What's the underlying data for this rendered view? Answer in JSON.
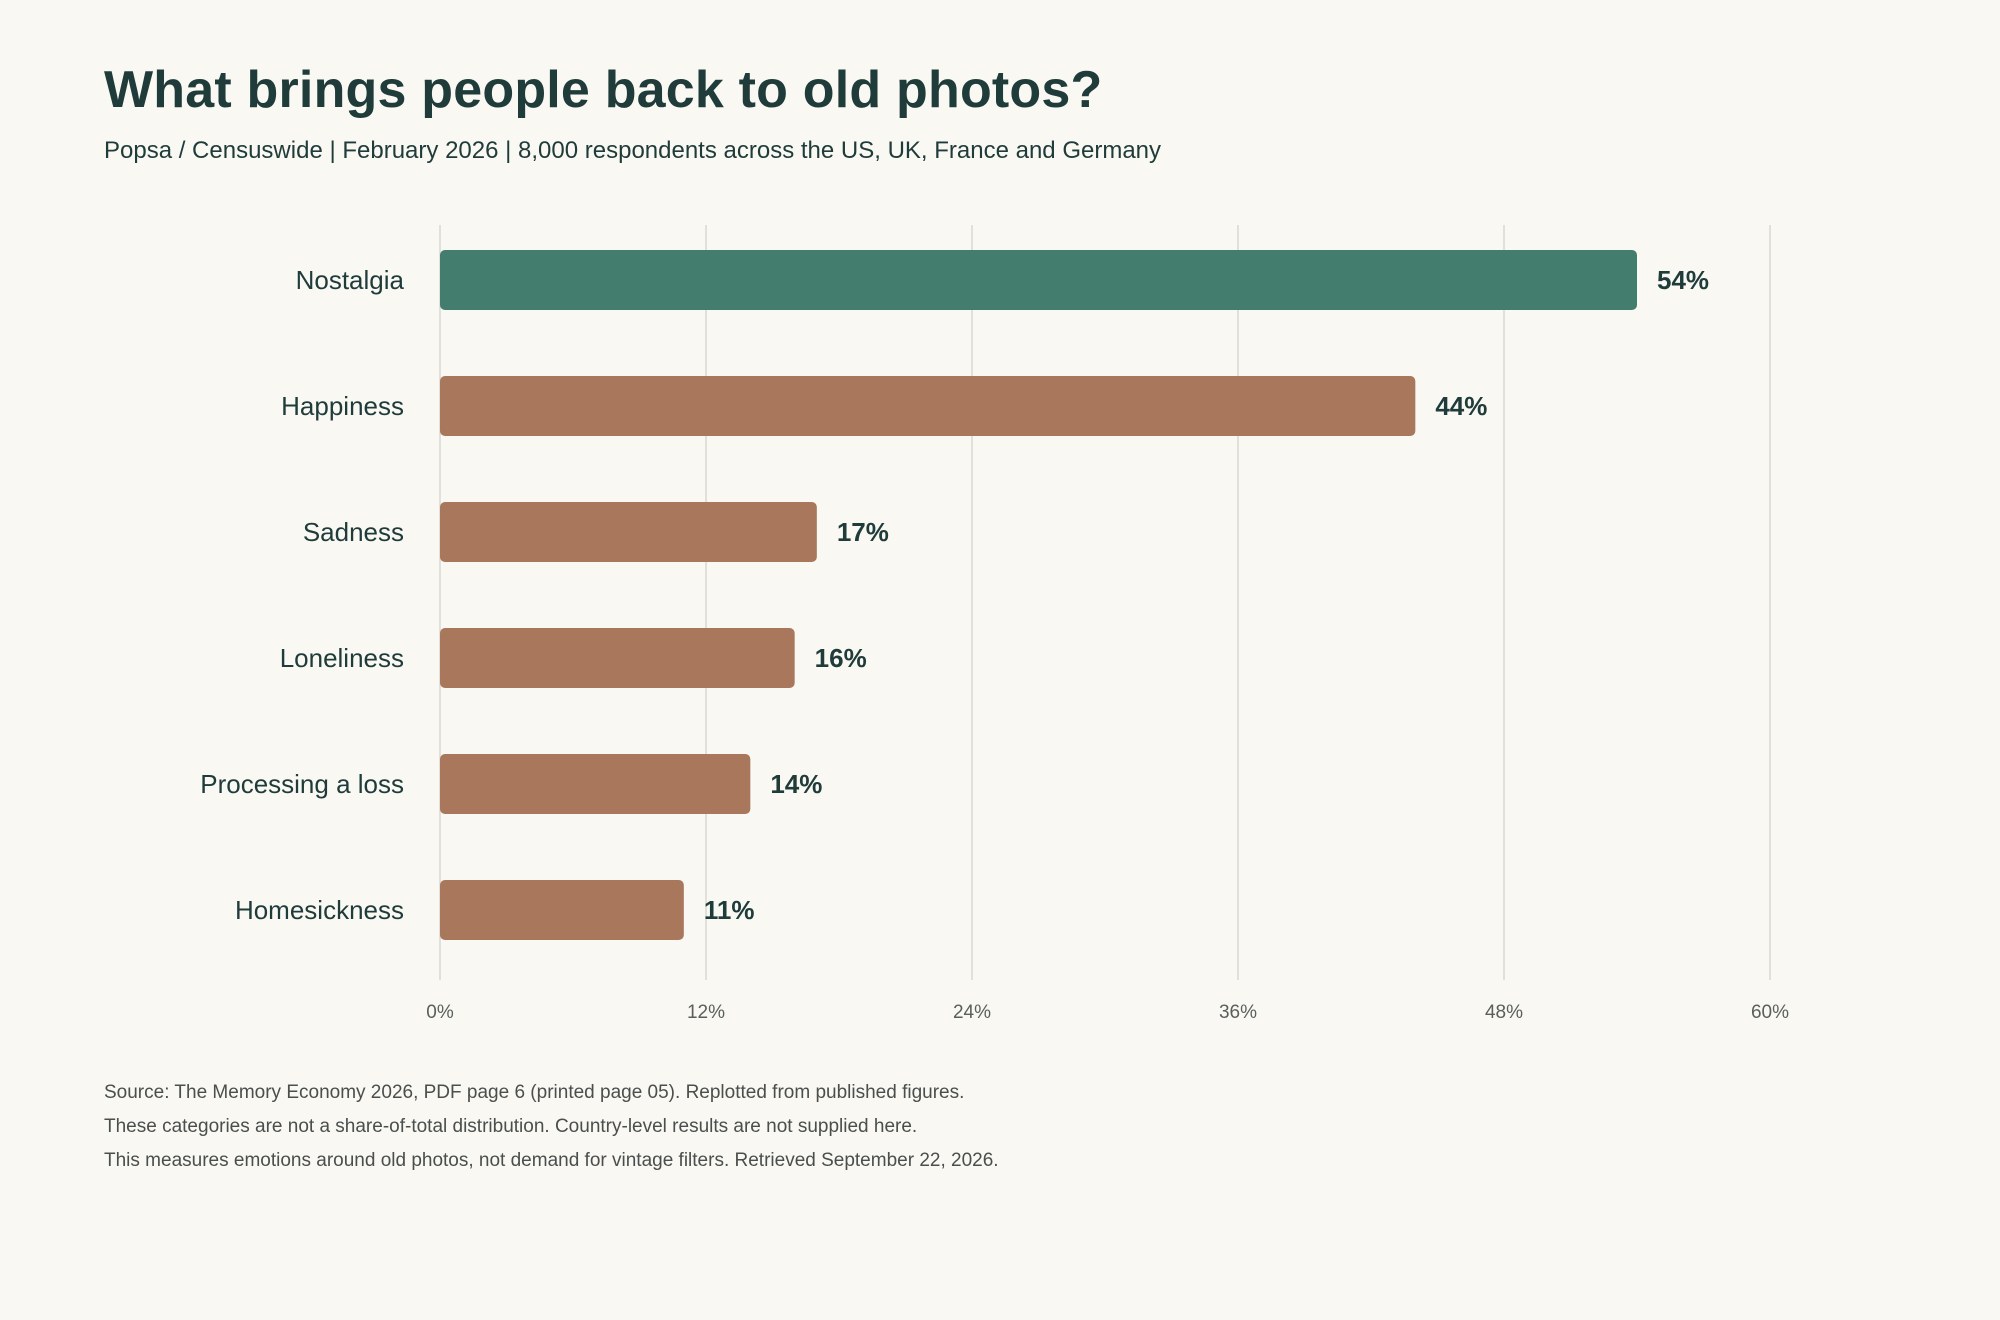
{
  "header": {
    "title": "What brings people back to old photos?",
    "subtitle": "Popsa / Censuswide | February 2026 | 8,000 respondents across the US, UK, France and Germany"
  },
  "chart_data": {
    "type": "bar",
    "orientation": "horizontal",
    "title": "What brings people back to old photos?",
    "subtitle": "Popsa / Censuswide | February 2026 | 8,000 respondents across the US, UK, France and Germany",
    "categories": [
      "Nostalgia",
      "Happiness",
      "Sadness",
      "Loneliness",
      "Processing a loss",
      "Homesickness"
    ],
    "values": [
      54,
      44,
      17,
      16,
      14,
      11
    ],
    "value_labels": [
      "54%",
      "44%",
      "17%",
      "16%",
      "14%",
      "11%"
    ],
    "xlim": [
      0,
      60
    ],
    "xticks": [
      0,
      12,
      24,
      36,
      48,
      60
    ],
    "xtick_labels": [
      "0%",
      "12%",
      "24%",
      "36%",
      "48%",
      "60%"
    ],
    "xlabel": "",
    "ylabel": "",
    "grid": "vertical",
    "legend": "none",
    "colors": {
      "highlight": "#437d6e",
      "default": "#a9775c",
      "grid": "#d9d8d2",
      "text": "#1f3b3a",
      "tick_text": "#5a5f5c",
      "background": "#f9f8f3"
    },
    "highlight_category": "Nostalgia"
  },
  "footer": {
    "notes": [
      "Source: The Memory Economy 2026, PDF page 6 (printed page 05). Replotted from published figures.",
      "These categories are not a share-of-total distribution. Country-level results are not supplied here.",
      "This measures emotions around old photos, not demand for vintage filters. Retrieved September 22, 2026."
    ]
  }
}
